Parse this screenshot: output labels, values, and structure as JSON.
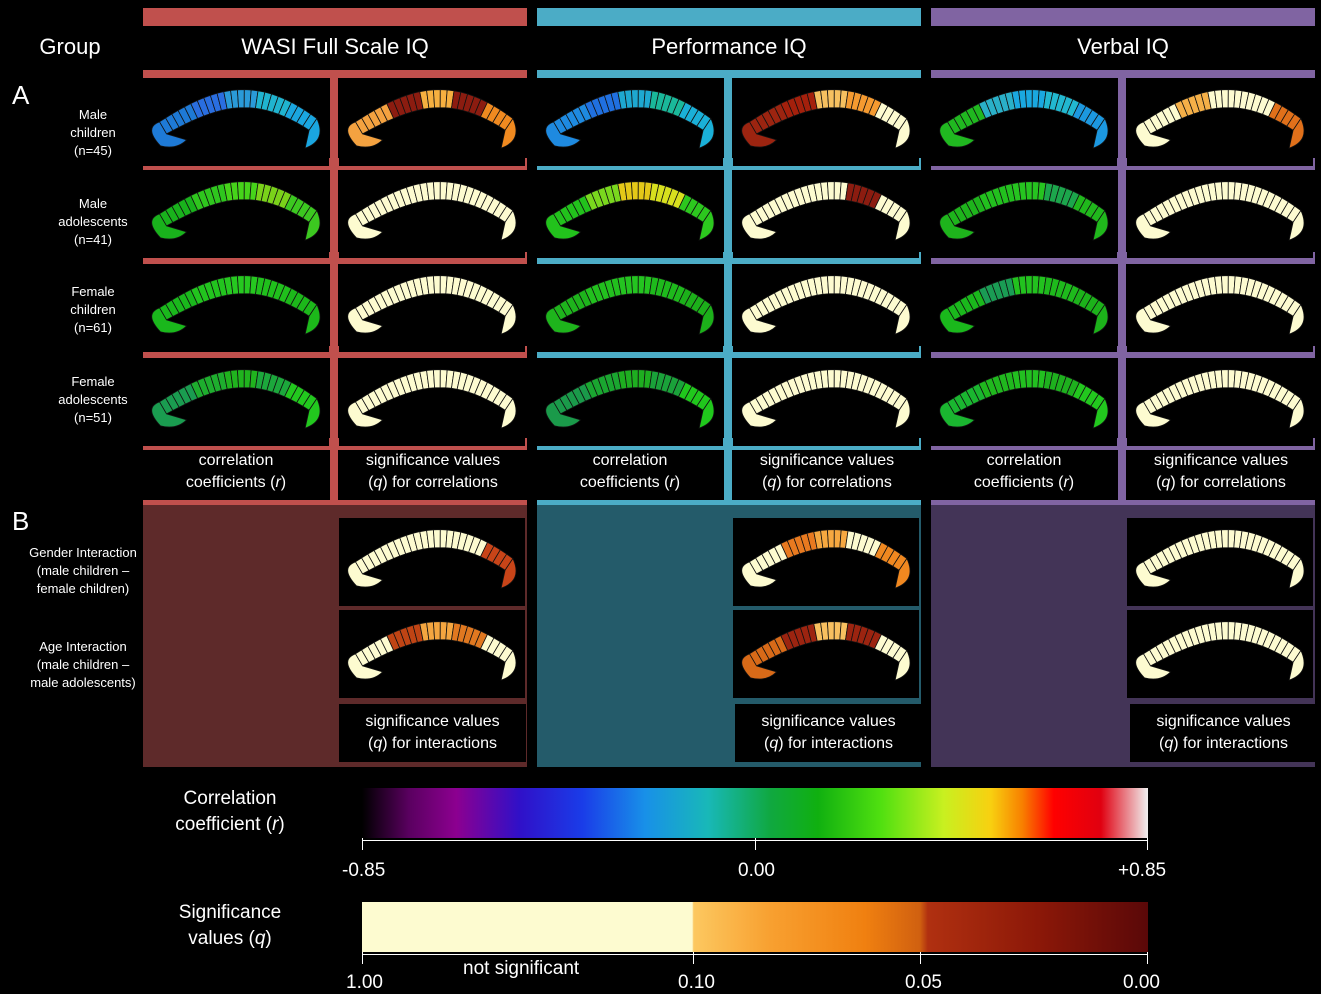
{
  "header": {
    "group_label": "Group"
  },
  "columns": [
    {
      "title": "WASI Full Scale IQ",
      "color": "#c0504d",
      "dark": "#5e2a2a"
    },
    {
      "title": "Performance IQ",
      "color": "#4bacc6",
      "dark": "#245b6a"
    },
    {
      "title": "Verbal IQ",
      "color": "#8064a2",
      "dark": "#433457"
    }
  ],
  "section_a": {
    "letter": "A",
    "groups": [
      {
        "lines": [
          "Male",
          "children",
          "(n=45)"
        ]
      },
      {
        "lines": [
          "Male",
          "adolescents",
          "(n=41)"
        ]
      },
      {
        "lines": [
          "Female",
          "children",
          "(n=61)"
        ]
      },
      {
        "lines": [
          "Female",
          "adolescents",
          "(n=51)"
        ]
      }
    ],
    "captions": {
      "r_line1": "correlation",
      "r_line2a": "coefficients (",
      "r_sym": "r",
      "r_line2b": ")",
      "q_line1": "significance values",
      "q_line2a": "(",
      "q_sym": "q",
      "q_line2b": ") for correlations"
    }
  },
  "section_b": {
    "letter": "B",
    "groups": [
      {
        "lines": [
          "Gender Interaction",
          "(male children –",
          "female children)"
        ]
      },
      {
        "lines": [
          "Age Interaction",
          "(male children –",
          "male adolescents)"
        ]
      }
    ],
    "caption": {
      "line1": "significance values",
      "line2a": "(",
      "q_sym": "q",
      "line2b": ") for interactions"
    }
  },
  "legend": {
    "r_title_line1": "Correlation",
    "r_title_line2a": "coefficient (",
    "r_sym": "r",
    "r_title_line2b": ")",
    "r_ticks": [
      "-0.85",
      "0.00",
      "+0.85"
    ],
    "q_title_line1": "Significance",
    "q_title_line2a": "values (",
    "q_sym": "q",
    "q_title_line2b": ")",
    "q_ticks": [
      "1.00",
      "0.10",
      "0.05",
      "0.00"
    ],
    "q_note": "not significant"
  },
  "maps": {
    "r": [
      [
        "#1e7ad6",
        "#2a6ee0",
        "#2a9ad8",
        "#20b4d0",
        "#1aa6e0"
      ],
      [
        "#19b21c",
        "#2fc61e",
        "#46d41a",
        "#7ad21a",
        "#3cc820"
      ],
      [
        "#1ab81c",
        "#22c41e",
        "#26c820",
        "#20c01c",
        "#1cb81a"
      ],
      [
        "#1a9c50",
        "#1eae2e",
        "#20b41e",
        "#1ca83c",
        "#22c81e"
      ]
    ],
    "p": [
      [
        "#1e8ae0",
        "#2070e0",
        "#1ea8d0",
        "#1ab89a",
        "#1ab0d8"
      ],
      [
        "#22c21c",
        "#7ad81e",
        "#e4c818",
        "#d8e01e",
        "#2cc81e"
      ],
      [
        "#1eb41c",
        "#22c01e",
        "#24c420",
        "#1eba1c",
        "#1cb01a"
      ],
      [
        "#1a9a4a",
        "#1aa630",
        "#1eae20",
        "#1aa23a",
        "#20c81c"
      ]
    ],
    "v": [
      [
        "#20b820",
        "#2ab0c8",
        "#1aa8e0",
        "#22b8d0",
        "#1c98e0"
      ],
      [
        "#1eb41c",
        "#22c01e",
        "#26c420",
        "#1ca64c",
        "#20b81c"
      ],
      [
        "#1ab81c",
        "#1a9c54",
        "#22c21e",
        "#1eba1c",
        "#1cb21a"
      ],
      [
        "#1ab630",
        "#20b81e",
        "#22c020",
        "#1eb01e",
        "#22c81e"
      ]
    ],
    "q_fsiq": [
      [
        "#f4a240",
        "#8c1c10",
        "#f6b040",
        "#8c1c10",
        "#f08a20"
      ],
      [
        "#fdfbd0",
        "#fdfbd0",
        "#fdfbd0",
        "#fdfbd0",
        "#fdfbd0"
      ],
      [
        "#fdfbd0",
        "#fdfbd0",
        "#fdfbd0",
        "#fdfbd0",
        "#fdfbd0"
      ],
      [
        "#fdfbd0",
        "#fdfbd0",
        "#fdfbd0",
        "#fdfbd0",
        "#fdfbd0"
      ]
    ],
    "q_piq": [
      [
        "#9c2410",
        "#a4200c",
        "#f6c060",
        "#f59a30",
        "#fdfbd0"
      ],
      [
        "#fdfbd0",
        "#fdfbd0",
        "#fdfbd0",
        "#8c1c10",
        "#fdfbd0"
      ],
      [
        "#fdfbd0",
        "#fdfbd0",
        "#fdfbd0",
        "#fdfbd0",
        "#fdfbd0"
      ],
      [
        "#fdfbd0",
        "#fdfbd0",
        "#fdfbd0",
        "#fdfbd0",
        "#fdfbd0"
      ]
    ],
    "q_viq": [
      [
        "#fdfbd0",
        "#f5b048",
        "#fdfbd0",
        "#fdfbd0",
        "#e0701a"
      ],
      [
        "#fdfbd0",
        "#fdfbd0",
        "#fdfbd0",
        "#fdfbd0",
        "#fdfbd0"
      ],
      [
        "#fdfbd0",
        "#fdfbd0",
        "#fdfbd0",
        "#fdfbd0",
        "#fdfbd0"
      ],
      [
        "#fdfbd0",
        "#fdfbd0",
        "#fdfbd0",
        "#fdfbd0",
        "#fdfbd0"
      ]
    ],
    "int_fsiq": [
      [
        "#fdfbd0",
        "#fdfbd0",
        "#fdfbd0",
        "#fdfbd0",
        "#c84418"
      ],
      [
        "#fdfbd0",
        "#c04414",
        "#f4a640",
        "#e07820",
        "#fdfbd0"
      ]
    ],
    "int_piq": [
      [
        "#fdfbd0",
        "#e87a20",
        "#f6a840",
        "#fdfbd0",
        "#f08820"
      ],
      [
        "#d86a18",
        "#9c2410",
        "#f8c060",
        "#9c2410",
        "#fdfbd0"
      ]
    ],
    "int_viq": [
      [
        "#fdfbd0",
        "#fdfbd0",
        "#fdfbd0",
        "#fdfbd0",
        "#fdfbd0"
      ],
      [
        "#fdfbd0",
        "#fdfbd0",
        "#fdfbd0",
        "#fdfbd0",
        "#fdfbd0"
      ]
    ]
  }
}
